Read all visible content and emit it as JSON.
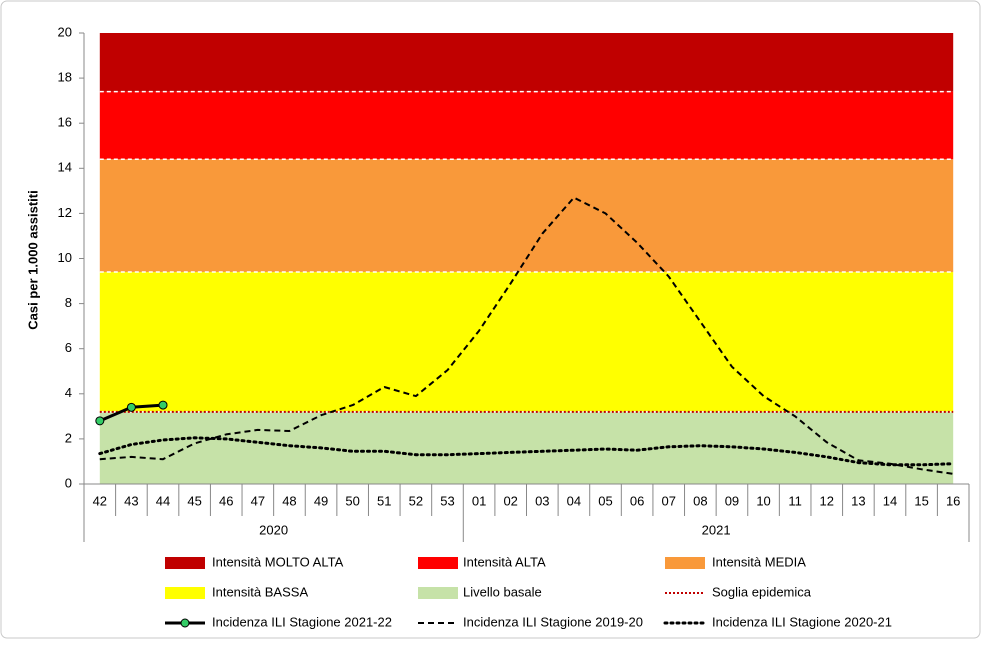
{
  "chart_data": {
    "type": "line",
    "y_label": "Casi per 1.000 assistiti",
    "categories": [
      "42",
      "43",
      "44",
      "45",
      "46",
      "47",
      "48",
      "49",
      "50",
      "51",
      "52",
      "53",
      "01",
      "02",
      "03",
      "04",
      "05",
      "06",
      "07",
      "08",
      "09",
      "10",
      "11",
      "12",
      "13",
      "14",
      "15",
      "16"
    ],
    "x_groups": [
      {
        "label": "2020",
        "first": "42",
        "last": "53"
      },
      {
        "label": "2021",
        "first": "01",
        "last": "16"
      }
    ],
    "ylim": [
      0,
      20
    ],
    "yticks": [
      0,
      2,
      4,
      6,
      8,
      10,
      12,
      14,
      16,
      18,
      20
    ],
    "bands": [
      {
        "name": "Intensità MOLTO ALTA",
        "color": "#c00000",
        "from": 17.4,
        "to": 20
      },
      {
        "name": "Intensità ALTA",
        "color": "#ff0000",
        "from": 14.4,
        "to": 17.4
      },
      {
        "name": "Intensità MEDIA",
        "color": "#f9993a",
        "from": 9.4,
        "to": 14.4
      },
      {
        "name": "Intensità BASSA",
        "color": "#ffff00",
        "from": 3.2,
        "to": 9.4
      },
      {
        "name": "Livello basale",
        "color": "#c6e2a8",
        "from": 0,
        "to": 3.2
      }
    ],
    "threshold": {
      "name": "Soglia epidemica",
      "value": 3.2,
      "color": "#c00000"
    },
    "series": [
      {
        "name": "Incidenza ILI Stagione 2021-22",
        "color": "#000000",
        "style": "solid",
        "marker_color": "#33cc66",
        "values": [
          2.8,
          3.4,
          3.5,
          null,
          null,
          null,
          null,
          null,
          null,
          null,
          null,
          null,
          null,
          null,
          null,
          null,
          null,
          null,
          null,
          null,
          null,
          null,
          null,
          null,
          null,
          null,
          null,
          null
        ]
      },
      {
        "name": "Incidenza ILI Stagione 2019-20",
        "color": "#000000",
        "style": "dashed",
        "values": [
          1.1,
          1.2,
          1.1,
          1.8,
          2.2,
          2.4,
          2.35,
          3.05,
          3.5,
          4.3,
          3.9,
          5.05,
          6.8,
          8.9,
          11.1,
          12.7,
          12.0,
          10.7,
          9.2,
          7.2,
          5.2,
          3.9,
          3.0,
          1.85,
          1.05,
          0.9,
          0.65,
          0.45
        ]
      },
      {
        "name": "Incidenza ILI Stagione 2020-21",
        "color": "#000000",
        "style": "dotted",
        "values": [
          1.35,
          1.75,
          1.95,
          2.05,
          2.0,
          1.85,
          1.7,
          1.6,
          1.45,
          1.45,
          1.3,
          1.3,
          1.35,
          1.4,
          1.45,
          1.5,
          1.55,
          1.5,
          1.65,
          1.7,
          1.65,
          1.55,
          1.4,
          1.2,
          0.95,
          0.85,
          0.85,
          0.9
        ]
      }
    ]
  }
}
